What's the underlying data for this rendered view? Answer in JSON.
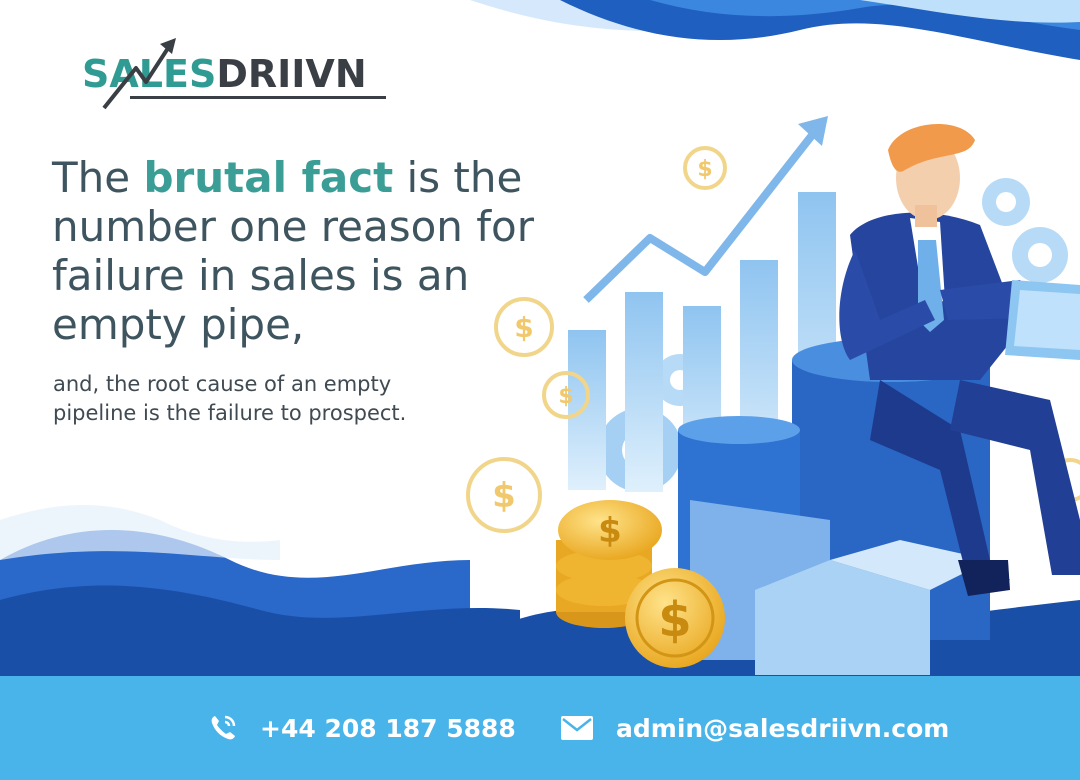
{
  "logo": {
    "part1": "SALES",
    "part2": "DRIIVN",
    "icon": "arrow-chart-icon"
  },
  "headline": {
    "lead": "The ",
    "highlight": "brutal fact",
    "rest": " is the number one reason for failure in sales is an empty pipe,"
  },
  "subline": "and, the root cause of an empty pipeline is the failure to prospect.",
  "footer": {
    "phone": "+44 208 187 5888",
    "email": "admin@salesdriivn.com",
    "phone_icon": "phone-icon",
    "email_icon": "envelope-icon"
  },
  "colors": {
    "accent": "#3a9e96",
    "footer": "#49b4ea",
    "wave_dark": "#1f5fbf",
    "coin": "#f2b92e"
  }
}
